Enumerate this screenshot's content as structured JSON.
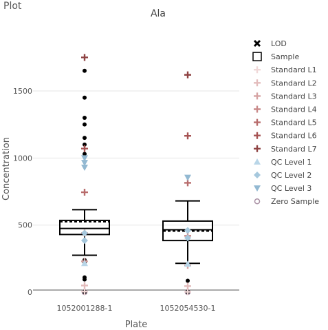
{
  "panel": {
    "title": "Plot"
  },
  "colors": {
    "grid": "#e6e6e6",
    "axis": "#555555",
    "box": "#000000",
    "lod": "#000000",
    "sample_marker": "#000000",
    "std": [
      "#f0d8d8",
      "#e3bcbc",
      "#d6a3a3",
      "#c98a8a",
      "#b86c6c",
      "#a65353",
      "#8f4343"
    ],
    "qc": [
      "#b9d6e8",
      "#a6c8dd",
      "#93b9d2"
    ],
    "zero": "#a88fa3"
  },
  "chart_data": {
    "type": "box",
    "title": "Ala",
    "xlabel": "Plate",
    "ylabel": "Concentration",
    "categories": [
      "1052001288-1",
      "1052054530-1"
    ],
    "ylim": [
      -20,
      1880
    ],
    "yticks": [
      0,
      500,
      1000,
      1500
    ],
    "grid": true,
    "legend_position": "right",
    "legend": [
      {
        "key": "lod",
        "label": "LOD",
        "symbol": "x"
      },
      {
        "key": "sample",
        "label": "Sample",
        "symbol": "square"
      },
      {
        "key": "std1",
        "label": "Standard L1",
        "symbol": "plus"
      },
      {
        "key": "std2",
        "label": "Standard L2",
        "symbol": "plus"
      },
      {
        "key": "std3",
        "label": "Standard L3",
        "symbol": "plus"
      },
      {
        "key": "std4",
        "label": "Standard L4",
        "symbol": "plus"
      },
      {
        "key": "std5",
        "label": "Standard L5",
        "symbol": "plus"
      },
      {
        "key": "std6",
        "label": "Standard L6",
        "symbol": "plus"
      },
      {
        "key": "std7",
        "label": "Standard L7",
        "symbol": "plus"
      },
      {
        "key": "qc1",
        "label": "QC Level 1",
        "symbol": "triangle-up"
      },
      {
        "key": "qc2",
        "label": "QC Level 2",
        "symbol": "diamond"
      },
      {
        "key": "qc3",
        "label": "QC Level 3",
        "symbol": "triangle-down"
      },
      {
        "key": "zero",
        "label": "Zero Sample",
        "symbol": "circle-open"
      }
    ],
    "boxes": [
      {
        "plate": "1052001288-1",
        "whisker_low": 275,
        "q1": 430,
        "median": 475,
        "q3": 535,
        "whisker_high": 615,
        "mean": 525
      },
      {
        "plate": "1052054530-1",
        "whisker_low": 215,
        "q1": 385,
        "median": 465,
        "q3": 530,
        "whisker_high": 680,
        "mean": 455
      }
    ],
    "series": [
      {
        "name": "LOD",
        "key": "lod",
        "points": []
      },
      {
        "name": "Sample",
        "key": "sample",
        "points": [
          [
            0,
            1650
          ],
          [
            0,
            1450
          ],
          [
            0,
            1300
          ],
          [
            0,
            1250
          ],
          [
            0,
            1150
          ],
          [
            0,
            1100
          ],
          [
            0,
            1030
          ],
          [
            0,
            240
          ],
          [
            0,
            220
          ],
          [
            0,
            110
          ],
          [
            0,
            95
          ],
          [
            0,
            5
          ],
          [
            0,
            0
          ],
          [
            1,
            85
          ],
          [
            1,
            5
          ],
          [
            1,
            0
          ]
        ]
      },
      {
        "name": "Standard L1",
        "key": "std1",
        "points": [
          [
            0,
            5
          ],
          [
            1,
            3
          ]
        ]
      },
      {
        "name": "Standard L2",
        "key": "std2",
        "points": [
          [
            0,
            50
          ],
          [
            1,
            45
          ]
        ]
      },
      {
        "name": "Standard L3",
        "key": "std3",
        "points": [
          [
            0,
            230
          ],
          [
            1,
            200
          ]
        ]
      },
      {
        "name": "Standard L4",
        "key": "std4",
        "points": [
          [
            0,
            440
          ],
          [
            1,
            420
          ]
        ]
      },
      {
        "name": "Standard L5",
        "key": "std5",
        "points": [
          [
            0,
            745
          ],
          [
            1,
            815
          ]
        ]
      },
      {
        "name": "Standard L6",
        "key": "std6",
        "points": [
          [
            0,
            1070
          ],
          [
            1,
            1165
          ]
        ]
      },
      {
        "name": "Standard L7",
        "key": "std7",
        "points": [
          [
            0,
            1750
          ],
          [
            1,
            1620
          ]
        ]
      },
      {
        "name": "QC Level 1",
        "key": "qc1",
        "points": [
          [
            0,
            215
          ],
          [
            1,
            210
          ]
        ]
      },
      {
        "name": "QC Level 2",
        "key": "qc2",
        "points": [
          [
            0,
            440
          ],
          [
            0,
            385
          ],
          [
            1,
            460
          ],
          [
            1,
            405
          ]
        ]
      },
      {
        "name": "QC Level 3",
        "key": "qc3",
        "points": [
          [
            0,
            1000
          ],
          [
            0,
            965
          ],
          [
            0,
            930
          ],
          [
            1,
            855
          ]
        ]
      },
      {
        "name": "Zero Sample",
        "key": "zero",
        "points": [
          [
            0,
            0
          ],
          [
            1,
            0
          ]
        ]
      }
    ]
  }
}
